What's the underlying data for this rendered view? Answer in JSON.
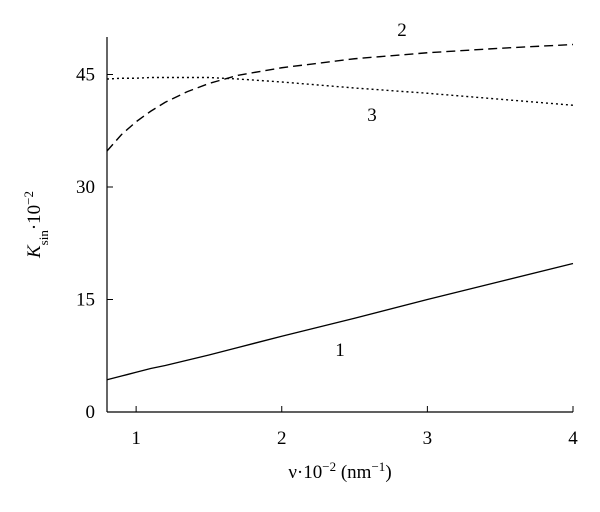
{
  "chart_data": {
    "type": "line",
    "x": [
      0.8,
      0.9,
      1.0,
      1.1,
      1.2,
      1.35,
      1.5,
      1.7,
      2.0,
      2.5,
      3.0,
      3.5,
      4.0
    ],
    "series": [
      {
        "name": "1",
        "color": "#000000",
        "dash": "solid",
        "values": [
          4.3,
          4.8,
          5.3,
          5.8,
          6.2,
          6.9,
          7.6,
          8.6,
          10.1,
          12.5,
          15.0,
          17.4,
          19.8
        ]
      },
      {
        "name": "2",
        "color": "#000000",
        "dash": "dashed",
        "values": [
          34.8,
          37.0,
          38.7,
          40.1,
          41.3,
          42.7,
          43.8,
          44.9,
          45.9,
          47.1,
          47.9,
          48.5,
          49.0
        ]
      },
      {
        "name": "3",
        "color": "#000000",
        "dash": "dotted",
        "values": [
          44.4,
          44.5,
          44.5,
          44.6,
          44.6,
          44.6,
          44.6,
          44.4,
          44.0,
          43.2,
          42.5,
          41.7,
          40.9
        ]
      }
    ],
    "xlabel": [
      {
        "text": "ν·10"
      },
      {
        "text": "−2",
        "sup": true
      },
      {
        "text": " (nm"
      },
      {
        "text": "−1",
        "sup": true
      },
      {
        "text": ")"
      }
    ],
    "ylabel": [
      {
        "text": "K",
        "italic": true
      },
      {
        "text": "sin",
        "sub": true
      },
      {
        "text": "·10"
      },
      {
        "text": "−2",
        "sup": true
      }
    ],
    "xlim": [
      0.8,
      4
    ],
    "xticks": [
      1,
      2,
      3,
      4
    ],
    "ylim": [
      0,
      50
    ],
    "yticks": [
      0,
      15,
      30,
      45
    ],
    "grid": false
  }
}
